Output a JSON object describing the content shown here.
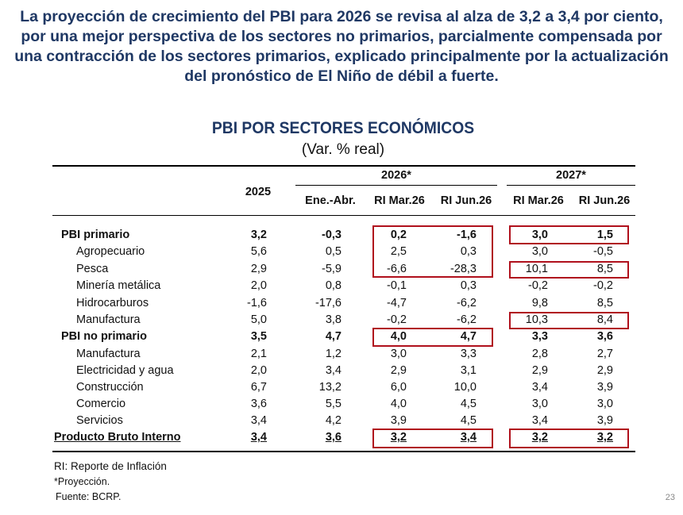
{
  "headline": "La proyección de crecimiento del PBI para 2026 se revisa al alza de 3,2 a 3,4 por ciento, por una mejor perspectiva de los sectores no primarios, parcialmente compensada por una contracción de los sectores primarios, explicado principalmente por la actualización del pronóstico de El Niño de débil a fuerte.",
  "table": {
    "title": "PBI POR SECTORES ECONÓMICOS",
    "subtitle": "(Var. % real)",
    "headers": {
      "year_2025": "2025",
      "group_2026": "2026*",
      "group_2027": "2027*",
      "ene_abr": "Ene.-Abr.",
      "ri_mar_2026": "RI Mar.26",
      "ri_jun_2026": "RI Jun.26",
      "ri_mar_2027": "RI Mar.26",
      "ri_jun_2027": "RI Jun.26"
    },
    "rows": [
      {
        "label": "PBI primario",
        "values": [
          "3,2",
          "-0,3",
          "0,2",
          "-1,6",
          "3,0",
          "1,5"
        ]
      },
      {
        "label": "Agropecuario",
        "values": [
          "5,6",
          "0,5",
          "2,5",
          "0,3",
          "3,0",
          "-0,5"
        ]
      },
      {
        "label": "Pesca",
        "values": [
          "2,9",
          "-5,9",
          "-6,6",
          "-28,3",
          "10,1",
          "8,5"
        ]
      },
      {
        "label": "Minería metálica",
        "values": [
          "2,0",
          "0,8",
          "-0,1",
          "0,3",
          "-0,2",
          "-0,2"
        ]
      },
      {
        "label": "Hidrocarburos",
        "values": [
          "-1,6",
          "-17,6",
          "-4,7",
          "-6,2",
          "9,8",
          "8,5"
        ]
      },
      {
        "label": "Manufactura",
        "values": [
          "5,0",
          "3,8",
          "-0,2",
          "-6,2",
          "10,3",
          "8,4"
        ]
      },
      {
        "label": "PBI no primario",
        "values": [
          "3,5",
          "4,7",
          "4,0",
          "4,7",
          "3,3",
          "3,6"
        ]
      },
      {
        "label": "Manufactura",
        "values": [
          "2,1",
          "1,2",
          "3,0",
          "3,3",
          "2,8",
          "2,7"
        ]
      },
      {
        "label": "Electricidad y agua",
        "values": [
          "2,0",
          "3,4",
          "2,9",
          "3,1",
          "2,9",
          "2,9"
        ]
      },
      {
        "label": "Construcción",
        "values": [
          "6,7",
          "13,2",
          "6,0",
          "10,0",
          "3,4",
          "3,9"
        ]
      },
      {
        "label": "Comercio",
        "values": [
          "3,6",
          "5,5",
          "4,0",
          "4,5",
          "3,0",
          "3,0"
        ]
      },
      {
        "label": "Servicios",
        "values": [
          "3,4",
          "4,2",
          "3,9",
          "4,5",
          "3,4",
          "3,9"
        ]
      },
      {
        "label": "Producto Bruto Interno",
        "values": [
          "3,4",
          "3,6",
          "3,2",
          "3,4",
          "3,2",
          "3,2"
        ]
      }
    ]
  },
  "footnotes": {
    "ri": "RI: Reporte de Inflación",
    "proyeccion": "*Proyección.",
    "fuente": "Fuente: BCRP."
  },
  "page_number": "23",
  "colors": {
    "headline": "#1f3864",
    "highlight_box": "#b0101c"
  }
}
